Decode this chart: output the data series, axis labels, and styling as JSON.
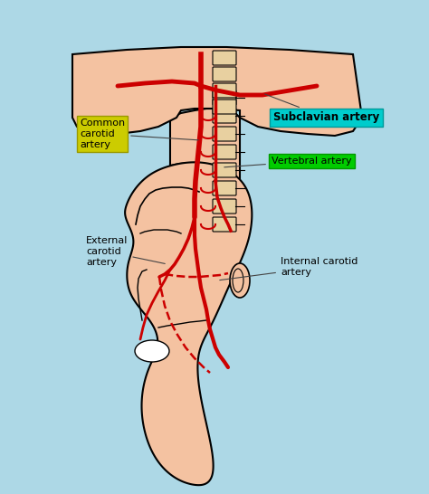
{
  "background_color": "#ADD8E6",
  "title": "",
  "figsize": [
    4.74,
    5.46
  ],
  "dpi": 100,
  "labels": {
    "internal_carotid": "Internal carotid\nartery",
    "external_carotid": "External\ncarotid\nartery",
    "vertebral": "Vertebral artery",
    "subclavian": "Subclavian artery",
    "common_carotid": "Common\ncarotid\nartery"
  },
  "label_boxes": {
    "vertebral": {
      "facecolor": "#00CC00",
      "edgecolor": "#00CC00"
    },
    "subclavian": {
      "facecolor": "#00CCCC",
      "edgecolor": "#00CCCC"
    },
    "common_carotid": {
      "facecolor": "#CCCC00",
      "edgecolor": "#CCCC00"
    }
  },
  "skin_color": "#F4C2A1",
  "artery_color": "#CC0000",
  "bone_color": "#E8C8A0",
  "line_color": "#000000"
}
